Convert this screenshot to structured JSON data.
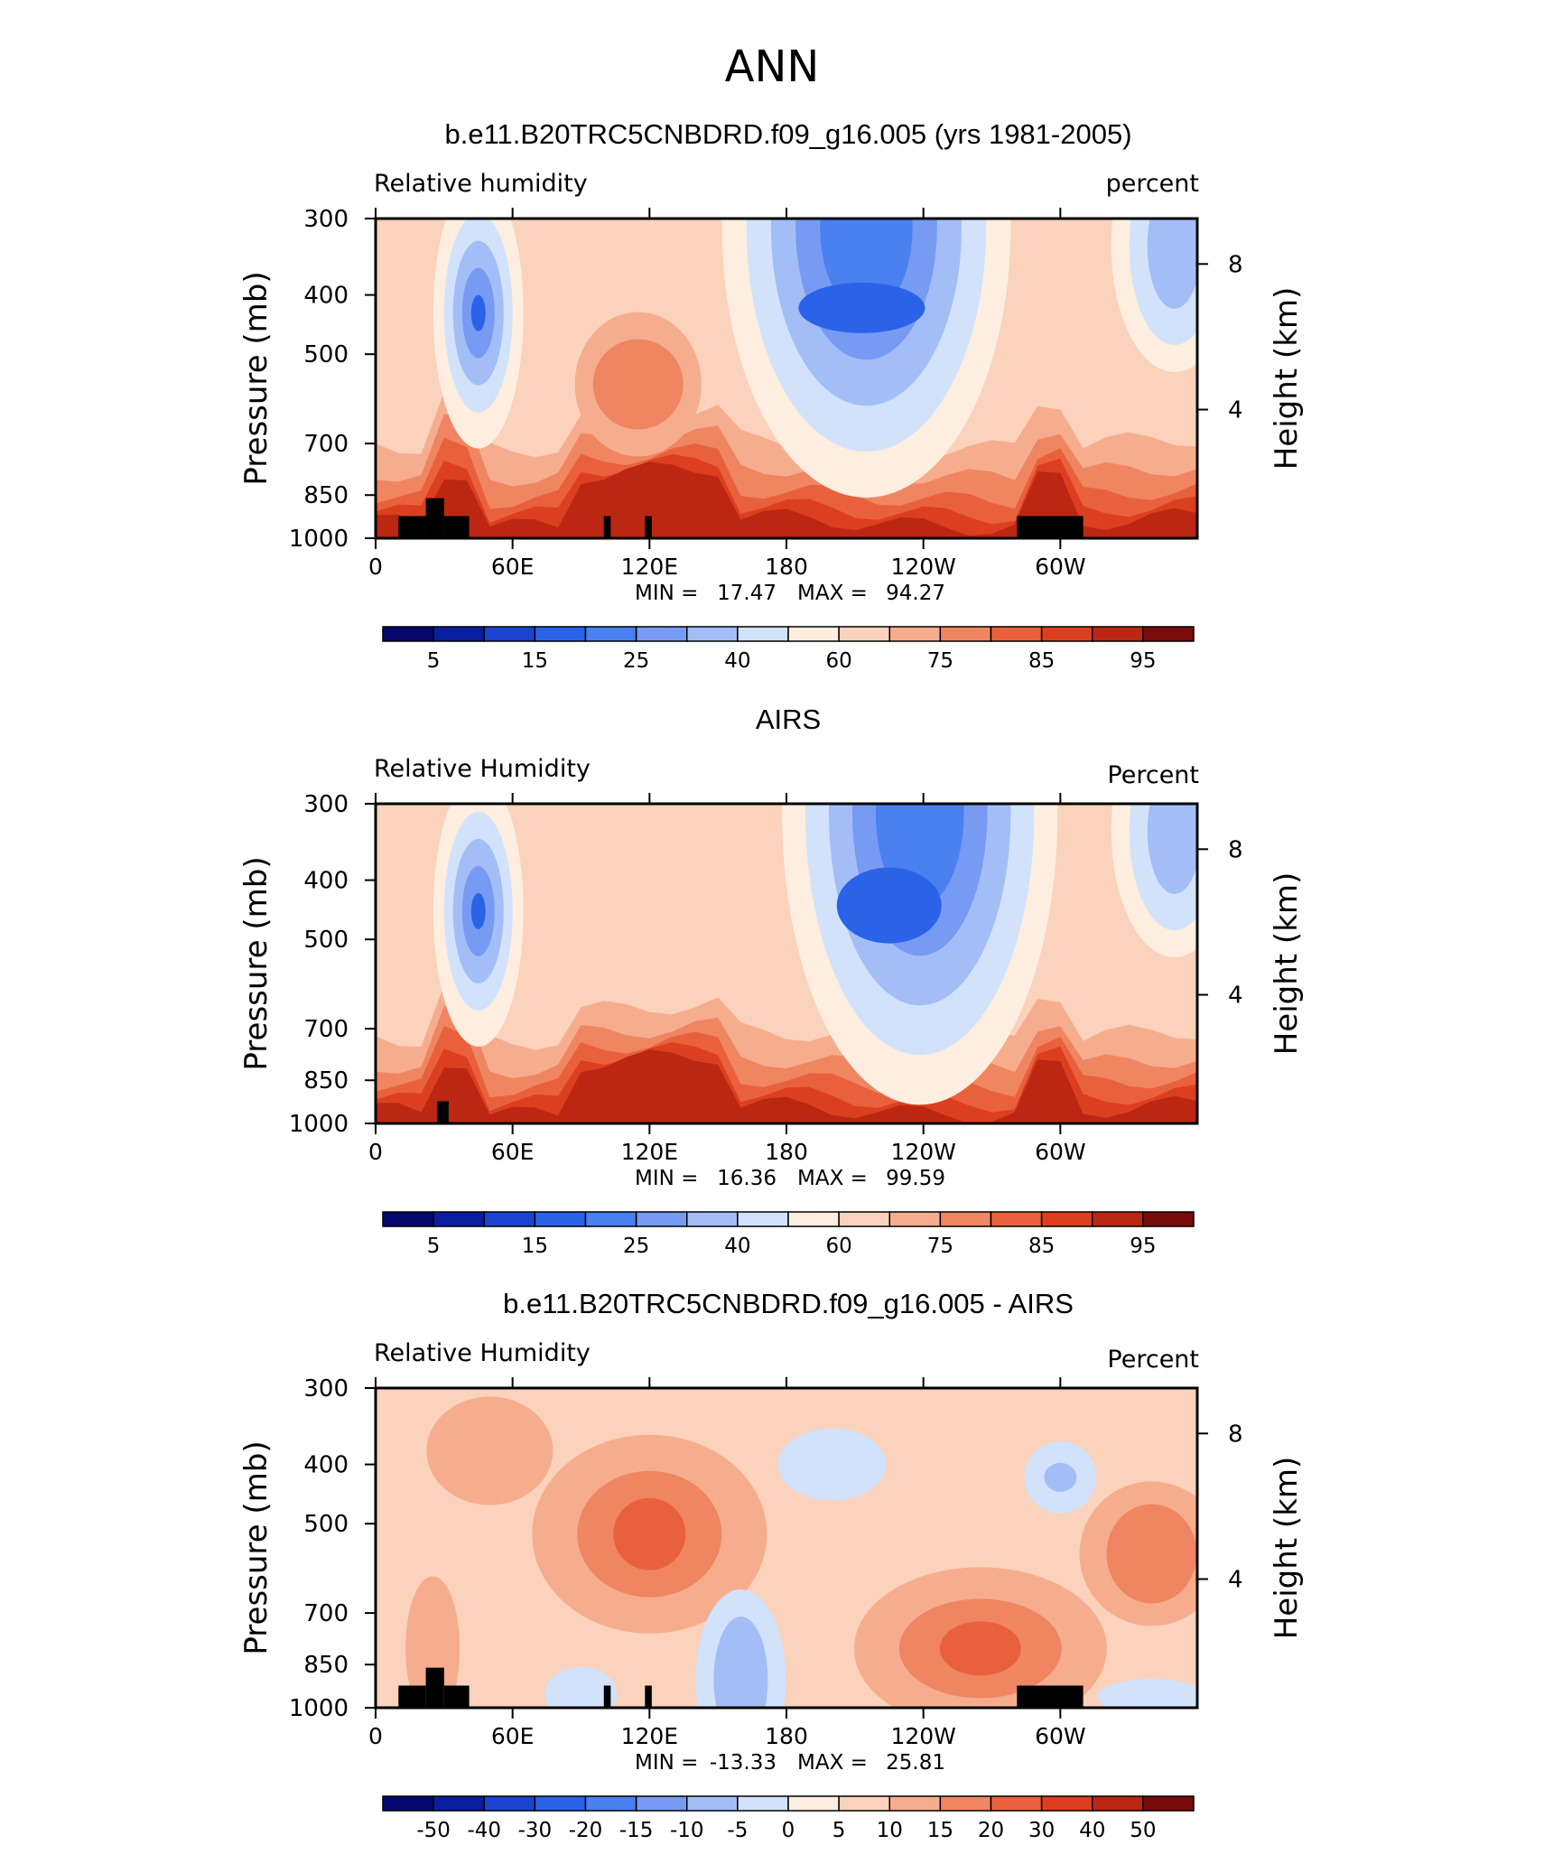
{
  "figure_title": "ANN",
  "colors": {
    "relative_humidity_scale": [
      "#07076e",
      "#0a1f9e",
      "#1a44cf",
      "#2a63e8",
      "#4a80ef",
      "#779bf3",
      "#a3bef7",
      "#d2e2fb",
      "#fdeee0",
      "#fbd2bb",
      "#f6ad8e",
      "#ef8661",
      "#e9613c",
      "#dc3f1f",
      "#bb2712",
      "#7a0b0b"
    ],
    "difference_scale": [
      "#07076e",
      "#0a1f9e",
      "#1a44cf",
      "#2a63e8",
      "#4a80ef",
      "#779bf3",
      "#a3bef7",
      "#d2e2fb",
      "#fdeee0",
      "#fbd2bb",
      "#f6ad8e",
      "#ef8661",
      "#e9613c",
      "#dc3f1f",
      "#bb2712",
      "#7a0b0b"
    ],
    "topography": "#000000"
  },
  "panels": [
    {
      "title": "b.e11.B20TRC5CNBDRD.f09_g16.005 (yrs 1981-2005)",
      "left_label": "Relative  humidity",
      "right_label": "percent",
      "y_axis_label": "Pressure  (mb)",
      "y2_axis_label": "Height  (km)",
      "min_label": "MIN  =",
      "min_value": "17.47",
      "max_label": "MAX  =",
      "max_value": "94.27"
    },
    {
      "title": "AIRS",
      "left_label": "Relative  Humidity",
      "right_label": "Percent",
      "y_axis_label": "Pressure  (mb)",
      "y2_axis_label": "Height  (km)",
      "min_label": "MIN  =",
      "min_value": "16.36",
      "max_label": "MAX  =",
      "max_value": "99.59"
    },
    {
      "title": "b.e11.B20TRC5CNBDRD.f09_g16.005 - AIRS",
      "left_label": "Relative  Humidity",
      "right_label": "Percent",
      "y_axis_label": "Pressure  (mb)",
      "y2_axis_label": "Height  (km)",
      "min_label": "MIN  =",
      "min_value": "-13.33",
      "max_label": "MAX  =",
      "max_value": "25.81"
    }
  ],
  "chart_data": [
    {
      "type": "heatmap",
      "title": "b.e11.B20TRC5CNBDRD.f09_g16.005 (yrs 1981-2005)",
      "subtitle_left": "Relative  humidity",
      "subtitle_right": "percent",
      "xlabel": "",
      "ylabel": "Pressure  (mb)",
      "y2label": "Height  (km)",
      "x_ticks": [
        "0",
        "60E",
        "120E",
        "180",
        "120W",
        "60W"
      ],
      "x_range_deg_east": [
        0,
        360
      ],
      "y_ticks": [
        "300",
        "400",
        "500",
        "700",
        "850",
        "1000"
      ],
      "y_range": [
        1000,
        300
      ],
      "y2_ticks": [
        "4",
        "8"
      ],
      "contour_levels": [
        "5",
        "15",
        "25",
        "40",
        "60",
        "75",
        "85",
        "95"
      ],
      "min": 17.47,
      "max": 94.27,
      "color_fill": {
        "dry_upper_cores": [
          {
            "lon": 45,
            "pressure": 400,
            "value": 25
          },
          {
            "lon": 213,
            "pressure": 420,
            "value": 25
          }
        ],
        "moist_boundary_layer": {
          "pressure_range": [
            850,
            1000
          ],
          "value": 85
        },
        "subtropical_dry": [
          {
            "lon_range": [
              160,
              270
            ],
            "pressure_range": [
              300,
              700
            ],
            "value": 40
          }
        ]
      }
    },
    {
      "type": "heatmap",
      "title": "AIRS",
      "subtitle_left": "Relative  Humidity",
      "subtitle_right": "Percent",
      "xlabel": "",
      "ylabel": "Pressure  (mb)",
      "y2label": "Height  (km)",
      "x_ticks": [
        "0",
        "60E",
        "120E",
        "180",
        "120W",
        "60W"
      ],
      "x_range_deg_east": [
        0,
        360
      ],
      "y_ticks": [
        "300",
        "400",
        "500",
        "700",
        "850",
        "1000"
      ],
      "y_range": [
        1000,
        300
      ],
      "y2_ticks": [
        "4",
        "8"
      ],
      "contour_levels": [
        "5",
        "15",
        "25",
        "40",
        "60",
        "75",
        "85",
        "95"
      ],
      "min": 16.36,
      "max": 99.59,
      "color_fill": {
        "dry_upper_cores": [
          {
            "lon": 45,
            "pressure": 420,
            "value": 25
          },
          {
            "lon": 225,
            "pressure": 440,
            "value": 25
          }
        ],
        "moist_boundary_layer": {
          "pressure_range": [
            850,
            1000
          ],
          "value": 85
        },
        "subtropical_dry": [
          {
            "lon_range": [
              180,
              285
            ],
            "pressure_range": [
              300,
              750
            ],
            "value": 40
          }
        ]
      }
    },
    {
      "type": "heatmap",
      "title": "b.e11.B20TRC5CNBDRD.f09_g16.005 - AIRS",
      "subtitle_left": "Relative  Humidity",
      "subtitle_right": "Percent",
      "xlabel": "",
      "ylabel": "Pressure  (mb)",
      "y2label": "Height  (km)",
      "x_ticks": [
        "0",
        "60E",
        "120E",
        "180",
        "120W",
        "60W"
      ],
      "x_range_deg_east": [
        0,
        360
      ],
      "y_ticks": [
        "300",
        "400",
        "500",
        "700",
        "850",
        "1000"
      ],
      "y_range": [
        1000,
        300
      ],
      "y2_ticks": [
        "4",
        "8"
      ],
      "contour_levels": [
        "-50",
        "-40",
        "-30",
        "-20",
        "-15",
        "-10",
        "-5",
        "0",
        "5",
        "10",
        "15",
        "20",
        "30",
        "40",
        "50"
      ],
      "min": -13.33,
      "max": 25.81,
      "color_fill": {
        "positive_maxima": [
          {
            "lon": 120,
            "pressure": 520,
            "value": 20
          },
          {
            "lon": 265,
            "pressure": 800,
            "value": 20
          },
          {
            "lon": 340,
            "pressure": 560,
            "value": 15
          }
        ],
        "negative_minima": [
          {
            "lon": 160,
            "pressure": 900,
            "value": -5
          },
          {
            "lon": 300,
            "pressure": 420,
            "value": -5
          }
        ]
      }
    }
  ],
  "colorbar_labels": [
    [
      "5",
      "15",
      "25",
      "40",
      "60",
      "75",
      "85",
      "95"
    ],
    [
      "5",
      "15",
      "25",
      "40",
      "60",
      "75",
      "85",
      "95"
    ],
    [
      "-50",
      "-40",
      "-30",
      "-20",
      "-15",
      "-10",
      "-5",
      "0",
      "5",
      "10",
      "15",
      "20",
      "30",
      "40",
      "50"
    ]
  ]
}
